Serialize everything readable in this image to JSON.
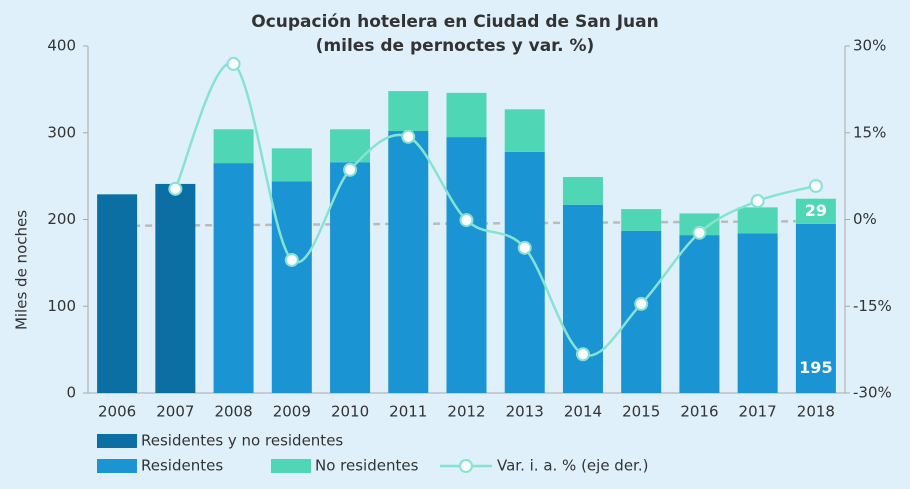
{
  "chart_data": {
    "type": "bar-line",
    "title": "Ocupación hotelera en Ciudad de San Juan",
    "subtitle": "(miles de pernoctes y var. %)",
    "ylabel": "Miles de noches",
    "categories": [
      "2006",
      "2007",
      "2008",
      "2009",
      "2010",
      "2011",
      "2012",
      "2013",
      "2014",
      "2015",
      "2016",
      "2017",
      "2018"
    ],
    "series": [
      {
        "name": "Residentes y no residentes",
        "color": "#0b6fa3",
        "values": [
          229,
          241,
          null,
          null,
          null,
          null,
          null,
          null,
          null,
          null,
          null,
          null,
          null
        ]
      },
      {
        "name": "Residentes",
        "color": "#1a94d2",
        "values": [
          null,
          null,
          265,
          244,
          266,
          302,
          295,
          278,
          217,
          187,
          182,
          184,
          195
        ]
      },
      {
        "name": "No residentes",
        "color": "#4fd6b4",
        "values": [
          null,
          null,
          39,
          38,
          38,
          46,
          51,
          49,
          32,
          25,
          25,
          30,
          29
        ]
      },
      {
        "name": "Var. i. a. % (eje der.)",
        "color": "#86e3d3",
        "axis": "y2",
        "type": "line",
        "values": [
          null,
          5.3,
          26.9,
          -7.0,
          8.6,
          14.3,
          -0.1,
          -4.9,
          -23.3,
          -14.6,
          -2.3,
          3.2,
          5.8
        ]
      }
    ],
    "ylim": [
      0,
      400
    ],
    "yticks": [
      0,
      100,
      200,
      300,
      400
    ],
    "y2lim": [
      -30,
      30
    ],
    "y2ticks": [
      {
        "value": -30,
        "label": "-30%"
      },
      {
        "value": -15,
        "label": "-15%"
      },
      {
        "value": 0,
        "label": "0%"
      },
      {
        "value": 15,
        "label": "15%"
      },
      {
        "value": 30,
        "label": "30%"
      }
    ]
  }
}
